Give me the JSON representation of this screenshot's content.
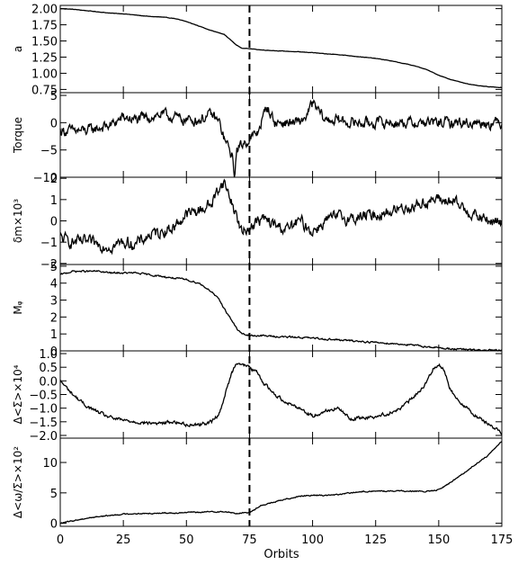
{
  "chart_data": {
    "type": "line",
    "xlabel": "Orbits",
    "xlim": [
      0,
      175
    ],
    "xticks": [
      0,
      25,
      50,
      75,
      100,
      125,
      150,
      175
    ],
    "xtick_labels": [
      "0",
      "25",
      "50",
      "75",
      "100",
      "125",
      "150",
      "175"
    ],
    "marker_line_x": 75,
    "panels": [
      {
        "ylabel": "a",
        "ylim": [
          0.7,
          2.05
        ],
        "yticks": [
          0.75,
          1.0,
          1.25,
          1.5,
          1.75,
          2.0
        ],
        "ytick_labels": [
          "0.75",
          "1.00",
          "1.25",
          "1.50",
          "1.75",
          "2.00"
        ],
        "noise": 0.005,
        "x": [
          0,
          5,
          10,
          15,
          20,
          25,
          30,
          35,
          40,
          45,
          50,
          55,
          60,
          65,
          68,
          70,
          72,
          75,
          80,
          85,
          90,
          95,
          100,
          105,
          110,
          115,
          120,
          125,
          130,
          135,
          140,
          145,
          150,
          155,
          160,
          165,
          170,
          175
        ],
        "y": [
          2.0,
          1.99,
          1.97,
          1.95,
          1.93,
          1.92,
          1.9,
          1.88,
          1.87,
          1.85,
          1.8,
          1.73,
          1.66,
          1.6,
          1.5,
          1.43,
          1.39,
          1.38,
          1.36,
          1.35,
          1.34,
          1.33,
          1.32,
          1.3,
          1.29,
          1.27,
          1.25,
          1.23,
          1.2,
          1.16,
          1.12,
          1.06,
          0.97,
          0.9,
          0.85,
          0.81,
          0.79,
          0.78
        ]
      },
      {
        "ylabel": "Torque",
        "ylim": [
          -10,
          5.5
        ],
        "yticks": [
          -10,
          -5,
          0,
          5
        ],
        "ytick_labels": [
          "−10",
          "−5",
          "0",
          "5"
        ],
        "noise": 1.6,
        "x": [
          0,
          5,
          10,
          15,
          20,
          25,
          30,
          35,
          40,
          45,
          50,
          55,
          60,
          63,
          65,
          67,
          68,
          69,
          70,
          72,
          75,
          78,
          80,
          82,
          85,
          90,
          95,
          98,
          100,
          105,
          110,
          115,
          120,
          125,
          130,
          135,
          140,
          145,
          150,
          155,
          160,
          165,
          170,
          175
        ],
        "y": [
          -1.5,
          -1.5,
          -1.5,
          -1.0,
          -0.5,
          1.0,
          0.5,
          1.0,
          1.5,
          1.0,
          0.5,
          0.5,
          1.5,
          0.0,
          -3.0,
          -5.0,
          -6.0,
          -9.5,
          -5.0,
          -4.0,
          -3.0,
          -2.0,
          0.5,
          3.0,
          0.0,
          0.0,
          0.0,
          1.5,
          3.5,
          0.5,
          0.5,
          0.0,
          0.0,
          0.0,
          0.0,
          0.0,
          0.0,
          0.0,
          0.0,
          0.0,
          0.0,
          0.0,
          0.0,
          0.0
        ]
      },
      {
        "ylabel": "δm×10³",
        "ylim": [
          -2.05,
          2.05
        ],
        "yticks": [
          -2,
          -1,
          0,
          1,
          2
        ],
        "ytick_labels": [
          "−2",
          "−1",
          "0",
          "1",
          "2"
        ],
        "noise": 0.45,
        "x": [
          0,
          5,
          10,
          15,
          20,
          25,
          30,
          35,
          40,
          45,
          50,
          55,
          60,
          63,
          65,
          67,
          70,
          72,
          75,
          80,
          85,
          90,
          95,
          100,
          105,
          110,
          115,
          120,
          125,
          130,
          135,
          140,
          145,
          150,
          155,
          160,
          165,
          170,
          175
        ],
        "y": [
          -0.8,
          -1.0,
          -1.0,
          -1.1,
          -1.2,
          -1.0,
          -1.1,
          -0.7,
          -0.5,
          -0.3,
          0.3,
          0.5,
          0.8,
          1.6,
          1.8,
          1.2,
          0.2,
          -0.6,
          -0.3,
          0.1,
          -0.2,
          -0.4,
          0.0,
          -0.5,
          0.0,
          0.2,
          0.1,
          0.2,
          0.3,
          0.4,
          0.6,
          0.7,
          0.9,
          1.0,
          0.9,
          0.6,
          0.2,
          0.0,
          -0.1
        ]
      },
      {
        "ylabel": "Mᵩ",
        "ylim": [
          0,
          5.1
        ],
        "yticks": [
          0,
          1,
          2,
          3,
          4,
          5
        ],
        "ytick_labels": [
          "0",
          "1",
          "2",
          "3",
          "4",
          "5"
        ],
        "noise": 0.08,
        "x": [
          0,
          5,
          10,
          15,
          20,
          25,
          30,
          35,
          40,
          45,
          50,
          55,
          60,
          63,
          65,
          68,
          70,
          72,
          75,
          80,
          85,
          90,
          95,
          100,
          105,
          110,
          115,
          120,
          125,
          130,
          135,
          140,
          145,
          150,
          155,
          160,
          165,
          170,
          175
        ],
        "y": [
          4.5,
          4.7,
          4.7,
          4.7,
          4.6,
          4.6,
          4.6,
          4.5,
          4.4,
          4.3,
          4.2,
          4.0,
          3.5,
          3.0,
          2.5,
          1.8,
          1.3,
          1.0,
          0.9,
          0.9,
          0.85,
          0.82,
          0.8,
          0.75,
          0.7,
          0.65,
          0.6,
          0.55,
          0.5,
          0.45,
          0.4,
          0.33,
          0.25,
          0.18,
          0.12,
          0.08,
          0.05,
          0.03,
          0.02
        ]
      },
      {
        "ylabel": "Δ<Σ>×10⁴",
        "ylim": [
          -2.1,
          1.1
        ],
        "yticks": [
          -2.0,
          -1.5,
          -1.0,
          -0.5,
          0.0,
          0.5,
          1.0
        ],
        "ytick_labels": [
          "−2.0",
          "−1.5",
          "−1.0",
          "−0.5",
          "0.0",
          "0.5",
          "1.0"
        ],
        "noise": 0.1,
        "x": [
          0,
          5,
          10,
          15,
          20,
          25,
          30,
          35,
          40,
          45,
          50,
          55,
          60,
          63,
          65,
          68,
          70,
          72,
          75,
          78,
          80,
          85,
          90,
          95,
          100,
          105,
          110,
          115,
          120,
          125,
          130,
          135,
          140,
          145,
          148,
          150,
          152,
          155,
          160,
          165,
          170,
          175
        ],
        "y": [
          0.0,
          -0.5,
          -0.9,
          -1.15,
          -1.35,
          -1.45,
          -1.5,
          -1.55,
          -1.55,
          -1.5,
          -1.6,
          -1.6,
          -1.5,
          -1.2,
          -0.6,
          0.3,
          0.7,
          0.6,
          0.5,
          0.3,
          0.0,
          -0.5,
          -0.8,
          -1.0,
          -1.3,
          -1.1,
          -1.0,
          -1.4,
          -1.35,
          -1.3,
          -1.2,
          -1.0,
          -0.6,
          -0.1,
          0.5,
          0.6,
          0.4,
          -0.4,
          -0.9,
          -1.3,
          -1.6,
          -1.9
        ]
      },
      {
        "ylabel": "Δ<ω/Σ>×10²",
        "ylim": [
          -0.5,
          14
        ],
        "yticks": [
          0,
          5,
          10
        ],
        "ytick_labels": [
          "0",
          "5",
          "10"
        ],
        "noise": 0.15,
        "x": [
          0,
          5,
          10,
          15,
          20,
          25,
          30,
          35,
          40,
          45,
          50,
          55,
          60,
          65,
          70,
          75,
          78,
          80,
          85,
          90,
          95,
          100,
          105,
          110,
          115,
          120,
          125,
          130,
          135,
          140,
          145,
          150,
          155,
          160,
          165,
          170,
          175
        ],
        "y": [
          0.0,
          0.4,
          0.8,
          1.1,
          1.3,
          1.5,
          1.6,
          1.6,
          1.7,
          1.7,
          1.8,
          1.8,
          1.9,
          1.9,
          1.6,
          1.8,
          2.5,
          3.0,
          3.5,
          4.0,
          4.5,
          4.6,
          4.6,
          4.7,
          5.0,
          5.2,
          5.3,
          5.3,
          5.3,
          5.3,
          5.2,
          5.5,
          6.8,
          8.3,
          9.8,
          11.3,
          13.5
        ]
      }
    ]
  }
}
